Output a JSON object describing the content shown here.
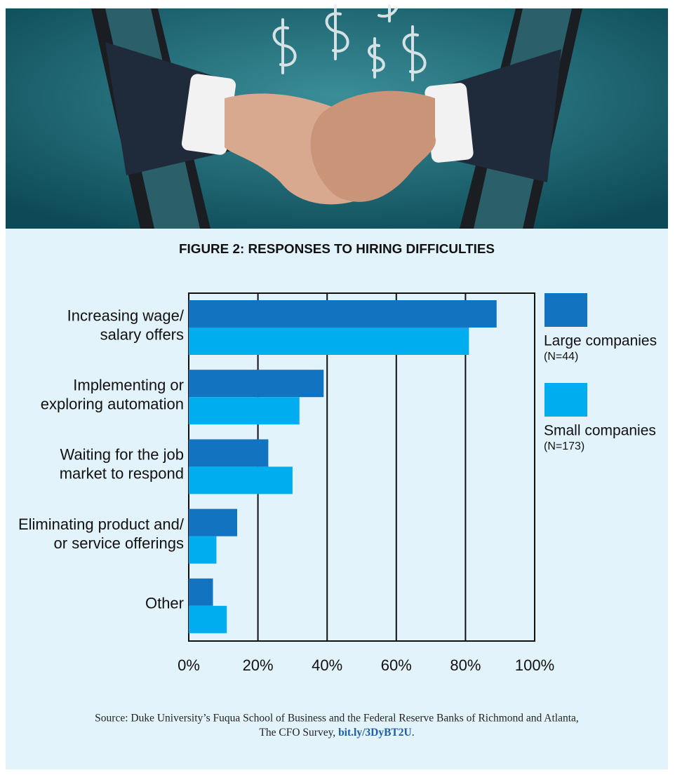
{
  "chart_data": {
    "type": "bar",
    "orientation": "horizontal",
    "title": "FIGURE 2: RESPONSES TO HIRING DIFFICULTIES",
    "categories": [
      [
        "Increasing wage/",
        "salary offers"
      ],
      [
        "Implementing or",
        "exploring automation"
      ],
      [
        "Waiting for the job",
        "market to respond"
      ],
      [
        "Eliminating product and/",
        "or service offerings"
      ],
      [
        "Other"
      ]
    ],
    "series": [
      {
        "name": "Large companies",
        "n_label": "(N=44)",
        "color": "#1273c0",
        "values": [
          89,
          39,
          23,
          14,
          7
        ]
      },
      {
        "name": "Small companies",
        "n_label": "(N=173)",
        "color": "#00aeef",
        "values": [
          81,
          32,
          30,
          8,
          11
        ]
      }
    ],
    "xlim": [
      0,
      100
    ],
    "xticks": [
      {
        "value": 0,
        "label": "0%"
      },
      {
        "value": 20,
        "label": "20%"
      },
      {
        "value": 40,
        "label": "40%"
      },
      {
        "value": 60,
        "label": "60%"
      },
      {
        "value": 80,
        "label": "80%"
      },
      {
        "value": 100,
        "label": "100%"
      }
    ],
    "grid": true,
    "legend": "right",
    "source": {
      "lines": [
        "Source: Duke University’s Fuqua School of Business and the Federal Reserve Banks of Richmond and Atlanta,",
        "The CFO Survey, "
      ],
      "link": "bit.ly/3DyBT2U",
      "tail": "."
    }
  }
}
